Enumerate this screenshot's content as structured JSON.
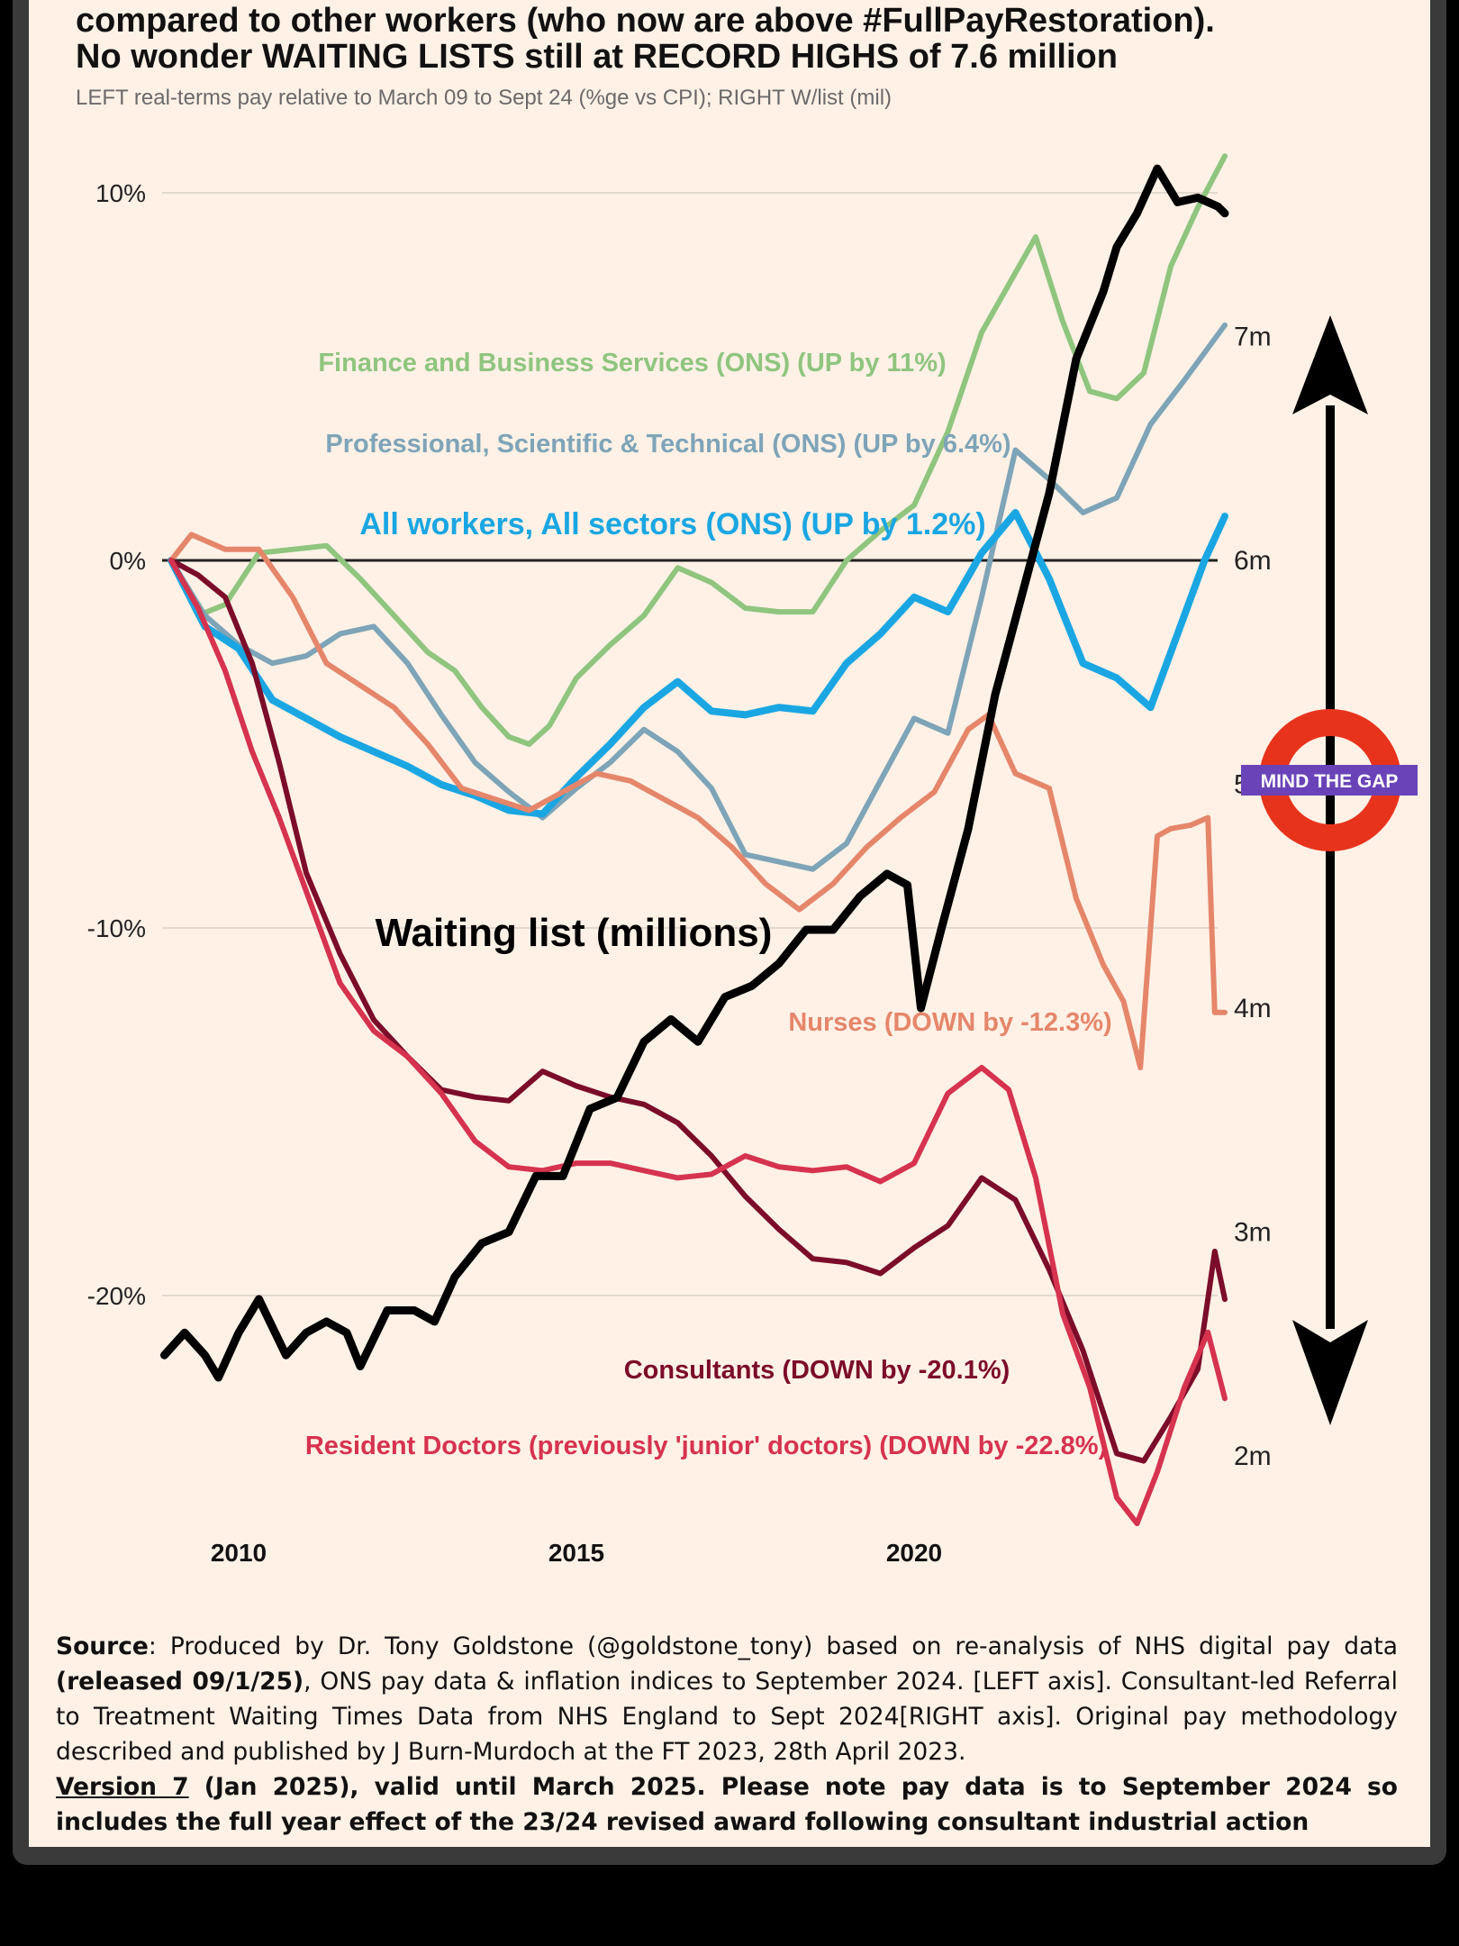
{
  "header": {
    "title_lines": [
      "compared to other workers (who now are above #FullPayRestoration).",
      "No wonder WAITING LISTS still at RECORD HIGHS of 7.6 million"
    ],
    "subtitle": "LEFT real-terms pay relative to March 09 to Sept 24 (%ge vs CPI); RIGHT W/list (mil)"
  },
  "chart_data": {
    "type": "line",
    "title": "",
    "xlabel": "",
    "ylabel": "",
    "x_ticks": [
      2010,
      2015,
      2020
    ],
    "xlim": [
      2008.9,
      2025.0
    ],
    "y_left": {
      "ticks": [
        10,
        0,
        -10,
        -20
      ],
      "tick_labels": [
        "10%",
        "0%",
        "-10%",
        "-20%"
      ],
      "ylim": [
        -26.5,
        13.5
      ]
    },
    "y_right": {
      "ticks": [
        7,
        6,
        5,
        4,
        3,
        2
      ],
      "tick_labels": [
        "7m",
        "6m",
        "5m",
        "4m",
        "3m",
        "2m"
      ]
    },
    "grid": true,
    "series": [
      {
        "name": "Finance and Business Services (ONS) (UP by 11%)",
        "axis": "left",
        "color": "#8fc57f",
        "points": [
          [
            2009.0,
            0
          ],
          [
            2009.4,
            -1.5
          ],
          [
            2009.8,
            -1.2
          ],
          [
            2010.3,
            0.2
          ],
          [
            2010.8,
            0.3
          ],
          [
            2011.3,
            0.4
          ],
          [
            2011.8,
            -0.5
          ],
          [
            2012.3,
            -1.5
          ],
          [
            2012.8,
            -2.5
          ],
          [
            2013.2,
            -3.0
          ],
          [
            2013.6,
            -4.0
          ],
          [
            2014.0,
            -4.8
          ],
          [
            2014.3,
            -5.0
          ],
          [
            2014.6,
            -4.5
          ],
          [
            2015.0,
            -3.2
          ],
          [
            2015.5,
            -2.3
          ],
          [
            2016.0,
            -1.5
          ],
          [
            2016.5,
            -0.2
          ],
          [
            2017.0,
            -0.6
          ],
          [
            2017.5,
            -1.3
          ],
          [
            2018.0,
            -1.4
          ],
          [
            2018.5,
            -1.4
          ],
          [
            2019.0,
            0.0
          ],
          [
            2019.5,
            0.8
          ],
          [
            2020.0,
            1.5
          ],
          [
            2020.5,
            3.5
          ],
          [
            2021.0,
            6.2
          ],
          [
            2021.4,
            7.5
          ],
          [
            2021.8,
            8.8
          ],
          [
            2022.2,
            6.5
          ],
          [
            2022.6,
            4.6
          ],
          [
            2023.0,
            4.4
          ],
          [
            2023.4,
            5.1
          ],
          [
            2023.8,
            8.0
          ],
          [
            2024.2,
            9.6
          ],
          [
            2024.6,
            11.0
          ]
        ]
      },
      {
        "name": "Professional, Scientific & Technical (ONS) (UP by 6.4%)",
        "axis": "left",
        "color": "#7ea4b8",
        "points": [
          [
            2009.0,
            0
          ],
          [
            2009.5,
            -1.5
          ],
          [
            2010.0,
            -2.3
          ],
          [
            2010.5,
            -2.8
          ],
          [
            2011.0,
            -2.6
          ],
          [
            2011.5,
            -2.0
          ],
          [
            2012.0,
            -1.8
          ],
          [
            2012.5,
            -2.8
          ],
          [
            2013.0,
            -4.2
          ],
          [
            2013.5,
            -5.5
          ],
          [
            2014.0,
            -6.3
          ],
          [
            2014.5,
            -7.0
          ],
          [
            2015.0,
            -6.2
          ],
          [
            2015.5,
            -5.5
          ],
          [
            2016.0,
            -4.6
          ],
          [
            2016.5,
            -5.2
          ],
          [
            2017.0,
            -6.2
          ],
          [
            2017.5,
            -8.0
          ],
          [
            2018.0,
            -8.2
          ],
          [
            2018.5,
            -8.4
          ],
          [
            2019.0,
            -7.7
          ],
          [
            2019.5,
            -6.0
          ],
          [
            2020.0,
            -4.3
          ],
          [
            2020.5,
            -4.7
          ],
          [
            2021.0,
            -1.0
          ],
          [
            2021.5,
            3.0
          ],
          [
            2022.0,
            2.2
          ],
          [
            2022.5,
            1.3
          ],
          [
            2023.0,
            1.7
          ],
          [
            2023.5,
            3.7
          ],
          [
            2024.0,
            4.9
          ],
          [
            2024.6,
            6.4
          ]
        ]
      },
      {
        "name": "All workers, All sectors (ONS) (UP by 1.2%)",
        "axis": "left",
        "color": "#1aa6e2",
        "points": [
          [
            2009.0,
            0
          ],
          [
            2009.5,
            -1.8
          ],
          [
            2010.0,
            -2.4
          ],
          [
            2010.5,
            -3.8
          ],
          [
            2011.0,
            -4.3
          ],
          [
            2011.5,
            -4.8
          ],
          [
            2012.0,
            -5.2
          ],
          [
            2012.5,
            -5.6
          ],
          [
            2013.0,
            -6.1
          ],
          [
            2013.5,
            -6.4
          ],
          [
            2014.0,
            -6.8
          ],
          [
            2014.5,
            -6.9
          ],
          [
            2015.0,
            -5.9
          ],
          [
            2015.5,
            -5.0
          ],
          [
            2016.0,
            -4.0
          ],
          [
            2016.5,
            -3.3
          ],
          [
            2017.0,
            -4.1
          ],
          [
            2017.5,
            -4.2
          ],
          [
            2018.0,
            -4.0
          ],
          [
            2018.5,
            -4.1
          ],
          [
            2019.0,
            -2.8
          ],
          [
            2019.5,
            -2.0
          ],
          [
            2020.0,
            -1.0
          ],
          [
            2020.5,
            -1.4
          ],
          [
            2021.0,
            0.2
          ],
          [
            2021.5,
            1.3
          ],
          [
            2022.0,
            -0.5
          ],
          [
            2022.5,
            -2.8
          ],
          [
            2023.0,
            -3.2
          ],
          [
            2023.5,
            -4.0
          ],
          [
            2024.0,
            -1.5
          ],
          [
            2024.3,
            0.0
          ],
          [
            2024.6,
            1.2
          ]
        ]
      },
      {
        "name": "Nurses (DOWN by -12.3%)",
        "axis": "left",
        "color": "#e5866b",
        "points": [
          [
            2009.0,
            0
          ],
          [
            2009.3,
            0.7
          ],
          [
            2009.8,
            0.3
          ],
          [
            2010.3,
            0.3
          ],
          [
            2010.8,
            -1.0
          ],
          [
            2011.3,
            -2.8
          ],
          [
            2011.8,
            -3.4
          ],
          [
            2012.3,
            -4.0
          ],
          [
            2012.8,
            -5.0
          ],
          [
            2013.3,
            -6.2
          ],
          [
            2013.8,
            -6.5
          ],
          [
            2014.3,
            -6.8
          ],
          [
            2014.8,
            -6.3
          ],
          [
            2015.3,
            -5.8
          ],
          [
            2015.8,
            -6.0
          ],
          [
            2016.3,
            -6.5
          ],
          [
            2016.8,
            -7.0
          ],
          [
            2017.3,
            -7.8
          ],
          [
            2017.8,
            -8.8
          ],
          [
            2018.3,
            -9.5
          ],
          [
            2018.8,
            -8.8
          ],
          [
            2019.3,
            -7.8
          ],
          [
            2019.8,
            -7.0
          ],
          [
            2020.3,
            -6.3
          ],
          [
            2020.8,
            -4.6
          ],
          [
            2021.1,
            -4.2
          ],
          [
            2021.5,
            -5.8
          ],
          [
            2022.0,
            -6.2
          ],
          [
            2022.4,
            -9.2
          ],
          [
            2022.8,
            -11.0
          ],
          [
            2023.1,
            -12.0
          ],
          [
            2023.35,
            -13.8
          ],
          [
            2023.6,
            -7.5
          ],
          [
            2023.8,
            -7.3
          ],
          [
            2024.1,
            -7.2
          ],
          [
            2024.35,
            -7.0
          ],
          [
            2024.45,
            -12.3
          ],
          [
            2024.6,
            -12.3
          ]
        ]
      },
      {
        "name": "Consultants (DOWN by -20.1%)",
        "axis": "left",
        "color": "#7b0c2a",
        "points": [
          [
            2009.0,
            0
          ],
          [
            2009.4,
            -0.4
          ],
          [
            2009.8,
            -1.0
          ],
          [
            2010.2,
            -2.8
          ],
          [
            2010.6,
            -5.5
          ],
          [
            2011.0,
            -8.5
          ],
          [
            2011.5,
            -10.7
          ],
          [
            2012.0,
            -12.5
          ],
          [
            2012.5,
            -13.5
          ],
          [
            2013.0,
            -14.4
          ],
          [
            2013.5,
            -14.6
          ],
          [
            2014.0,
            -14.7
          ],
          [
            2014.5,
            -13.9
          ],
          [
            2015.0,
            -14.3
          ],
          [
            2015.5,
            -14.6
          ],
          [
            2016.0,
            -14.8
          ],
          [
            2016.5,
            -15.3
          ],
          [
            2017.0,
            -16.2
          ],
          [
            2017.5,
            -17.3
          ],
          [
            2018.0,
            -18.2
          ],
          [
            2018.5,
            -19.0
          ],
          [
            2019.0,
            -19.1
          ],
          [
            2019.5,
            -19.4
          ],
          [
            2020.0,
            -18.7
          ],
          [
            2020.5,
            -18.1
          ],
          [
            2021.0,
            -16.8
          ],
          [
            2021.5,
            -17.4
          ],
          [
            2022.0,
            -19.3
          ],
          [
            2022.5,
            -21.5
          ],
          [
            2023.0,
            -24.3
          ],
          [
            2023.4,
            -24.5
          ],
          [
            2023.8,
            -23.3
          ],
          [
            2024.2,
            -22.0
          ],
          [
            2024.45,
            -18.8
          ],
          [
            2024.6,
            -20.1
          ]
        ]
      },
      {
        "name": "Resident Doctors (previously 'junior' doctors) (DOWN by -22.8%)",
        "axis": "left",
        "color": "#d6334e",
        "points": [
          [
            2009.0,
            0
          ],
          [
            2009.4,
            -1.3
          ],
          [
            2009.8,
            -3.0
          ],
          [
            2010.2,
            -5.2
          ],
          [
            2010.6,
            -7.0
          ],
          [
            2011.0,
            -9.0
          ],
          [
            2011.5,
            -11.5
          ],
          [
            2012.0,
            -12.8
          ],
          [
            2012.5,
            -13.5
          ],
          [
            2013.0,
            -14.5
          ],
          [
            2013.5,
            -15.8
          ],
          [
            2014.0,
            -16.5
          ],
          [
            2014.5,
            -16.6
          ],
          [
            2015.0,
            -16.4
          ],
          [
            2015.5,
            -16.4
          ],
          [
            2016.0,
            -16.6
          ],
          [
            2016.5,
            -16.8
          ],
          [
            2017.0,
            -16.7
          ],
          [
            2017.5,
            -16.2
          ],
          [
            2018.0,
            -16.5
          ],
          [
            2018.5,
            -16.6
          ],
          [
            2019.0,
            -16.5
          ],
          [
            2019.5,
            -16.9
          ],
          [
            2020.0,
            -16.4
          ],
          [
            2020.5,
            -14.5
          ],
          [
            2021.0,
            -13.8
          ],
          [
            2021.4,
            -14.4
          ],
          [
            2021.8,
            -16.8
          ],
          [
            2022.2,
            -20.5
          ],
          [
            2022.6,
            -22.5
          ],
          [
            2023.0,
            -25.5
          ],
          [
            2023.3,
            -26.2
          ],
          [
            2023.6,
            -24.8
          ],
          [
            2024.0,
            -22.5
          ],
          [
            2024.35,
            -21.0
          ],
          [
            2024.6,
            -22.8
          ]
        ]
      },
      {
        "name": "Waiting list (millions)",
        "axis": "right",
        "color": "#000000",
        "points": [
          [
            2008.9,
            2.45
          ],
          [
            2009.2,
            2.55
          ],
          [
            2009.5,
            2.45
          ],
          [
            2009.7,
            2.35
          ],
          [
            2010.0,
            2.55
          ],
          [
            2010.3,
            2.7
          ],
          [
            2010.7,
            2.45
          ],
          [
            2011.0,
            2.55
          ],
          [
            2011.3,
            2.6
          ],
          [
            2011.6,
            2.55
          ],
          [
            2011.8,
            2.4
          ],
          [
            2012.2,
            2.65
          ],
          [
            2012.6,
            2.65
          ],
          [
            2012.9,
            2.6
          ],
          [
            2013.2,
            2.8
          ],
          [
            2013.6,
            2.95
          ],
          [
            2014.0,
            3.0
          ],
          [
            2014.4,
            3.25
          ],
          [
            2014.8,
            3.25
          ],
          [
            2015.2,
            3.55
          ],
          [
            2015.6,
            3.6
          ],
          [
            2016.0,
            3.85
          ],
          [
            2016.4,
            3.95
          ],
          [
            2016.8,
            3.85
          ],
          [
            2017.2,
            4.05
          ],
          [
            2017.6,
            4.1
          ],
          [
            2018.0,
            4.2
          ],
          [
            2018.4,
            4.35
          ],
          [
            2018.8,
            4.35
          ],
          [
            2019.2,
            4.5
          ],
          [
            2019.6,
            4.6
          ],
          [
            2019.9,
            4.55
          ],
          [
            2020.1,
            4.0
          ],
          [
            2020.4,
            4.35
          ],
          [
            2020.8,
            4.8
          ],
          [
            2021.2,
            5.4
          ],
          [
            2021.6,
            5.85
          ],
          [
            2022.0,
            6.3
          ],
          [
            2022.4,
            6.9
          ],
          [
            2022.8,
            7.2
          ],
          [
            2023.0,
            7.4
          ],
          [
            2023.3,
            7.55
          ],
          [
            2023.6,
            7.75
          ],
          [
            2023.9,
            7.6
          ],
          [
            2024.2,
            7.62
          ],
          [
            2024.5,
            7.58
          ],
          [
            2024.6,
            7.55
          ]
        ]
      }
    ],
    "labels": {
      "finance": "Finance and Business Services (ONS) (UP by 11%)",
      "professional": "Professional, Scientific & Technical (ONS) (UP by 6.4%)",
      "all_workers": "All workers, All sectors (ONS) (UP by 1.2%)",
      "waiting_list": "Waiting list (millions)",
      "nurses": "Nurses (DOWN by -12.3%)",
      "consultants": "Consultants (DOWN by -20.1%)",
      "resident": "Resident Doctors (previously 'junior' doctors) (DOWN by -22.8%)"
    },
    "annotation": {
      "roundel_text": "MIND THE GAP",
      "roundel_red": "#e8331c",
      "roundel_blue": "#6a43b8"
    }
  },
  "source": {
    "label": "Source",
    "text1": ": Produced by Dr. Tony Goldstone (@goldstone_tony) based on re-analysis of NHS digital pay data ",
    "bold_release": "(released 09/1/25)",
    "text2": ", ONS pay data & inflation indices to September 2024. [LEFT axis]. Consultant-led Referral to Treatment Waiting Times Data from NHS England to Sept 2024[RIGHT axis]. Original pay methodology described and published by J Burn-Murdoch at the FT 2023, 28th April 2023.",
    "version_label": "Version 7",
    "version_text": " (Jan 2025), valid until March 2025. Please note pay data is to September 2024 so includes the full year effect of the 23/24 revised award following consultant industrial action"
  }
}
